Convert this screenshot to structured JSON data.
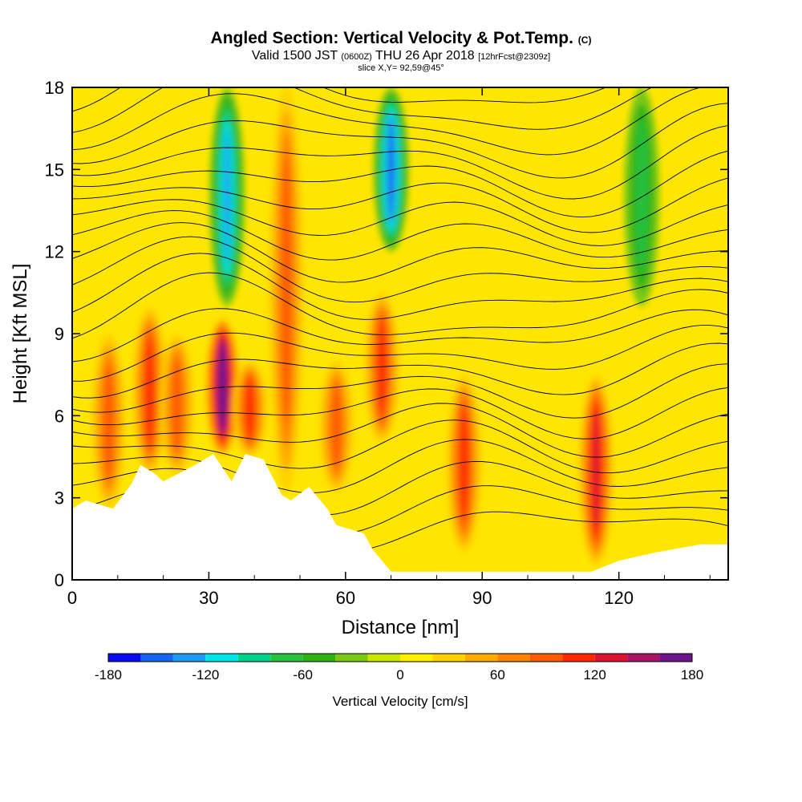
{
  "title": "Angled Section: Vertical Velocity & Pot.Temp.",
  "title_unit": "(C)",
  "subtitle_prefix": "Valid 1500 JST",
  "subtitle_zulu": "(0600Z)",
  "subtitle_date": "THU 26 Apr 2018",
  "subtitle_fcst": "[12hrFcst@2309z]",
  "slice_info": "slice X,Y= 92,59@45°",
  "chart_data": {
    "type": "heatmap",
    "xlabel": "Distance [nm]",
    "ylabel": "Height [Kft MSL]",
    "xlim": [
      0,
      144
    ],
    "ylim": [
      0,
      18
    ],
    "x_ticks": [
      "0",
      "30",
      "60",
      "90",
      "120"
    ],
    "y_ticks": [
      "0",
      "3",
      "6",
      "9",
      "12",
      "15",
      "18"
    ],
    "colorbar": {
      "label": "Vertical Velocity [cm/s]",
      "range": [
        -180,
        180
      ],
      "tick_labels": [
        "-180",
        "-120",
        "-60",
        "0",
        "60",
        "120",
        "180"
      ],
      "colors": [
        "#0a0af0",
        "#1464f0",
        "#1e9bf0",
        "#00e6e6",
        "#00d28c",
        "#28c03c",
        "#2db414",
        "#78c814",
        "#c8e600",
        "#fff000",
        "#ffd200",
        "#ffaa00",
        "#ff8200",
        "#ff5a00",
        "#ff2800",
        "#dc1432",
        "#aa1464",
        "#6e148c"
      ]
    },
    "vertical_velocity_features": [
      {
        "x": 8,
        "top": 2.6,
        "bottom": 9,
        "peak": 80
      },
      {
        "x": 17,
        "top": 3.8,
        "bottom": 10,
        "peak": 95
      },
      {
        "x": 23,
        "top": 3.8,
        "bottom": 9,
        "peak": 70
      },
      {
        "x": 33,
        "top": 4.5,
        "bottom": 9.6,
        "peak": 175
      },
      {
        "x": 39,
        "top": 4.5,
        "bottom": 8,
        "peak": 90
      },
      {
        "x": 34,
        "top": 10,
        "bottom": 18,
        "peak": -120
      },
      {
        "x": 47,
        "top": 3.2,
        "bottom": 18,
        "peak": 85
      },
      {
        "x": 58,
        "top": 3.2,
        "bottom": 8,
        "peak": 80
      },
      {
        "x": 68,
        "top": 5,
        "bottom": 10.5,
        "peak": 100
      },
      {
        "x": 70,
        "top": 12,
        "bottom": 18,
        "peak": -140
      },
      {
        "x": 86,
        "top": 1,
        "bottom": 7.5,
        "peak": 90
      },
      {
        "x": 115,
        "top": 0.5,
        "bottom": 7.5,
        "peak": 125
      },
      {
        "x": 125,
        "top": 10,
        "bottom": 18,
        "peak": -50
      }
    ],
    "theta_contours_count": 24,
    "terrain_km_profile": [
      [
        0,
        2.6
      ],
      [
        3,
        2.9
      ],
      [
        9,
        2.6
      ],
      [
        13,
        3.5
      ],
      [
        15,
        4.2
      ],
      [
        18,
        3.9
      ],
      [
        20,
        3.6
      ],
      [
        27,
        4.2
      ],
      [
        31,
        4.6
      ],
      [
        35,
        3.6
      ],
      [
        38,
        4.6
      ],
      [
        42,
        4.4
      ],
      [
        46,
        3.1
      ],
      [
        48,
        2.9
      ],
      [
        52,
        3.4
      ],
      [
        56,
        2.6
      ],
      [
        58,
        2.0
      ],
      [
        64,
        1.7
      ],
      [
        66,
        1.1
      ],
      [
        70,
        0.3
      ],
      [
        114,
        0.3
      ],
      [
        120,
        0.7
      ],
      [
        128,
        1.0
      ],
      [
        138,
        1.3
      ],
      [
        144,
        1.3
      ]
    ]
  }
}
